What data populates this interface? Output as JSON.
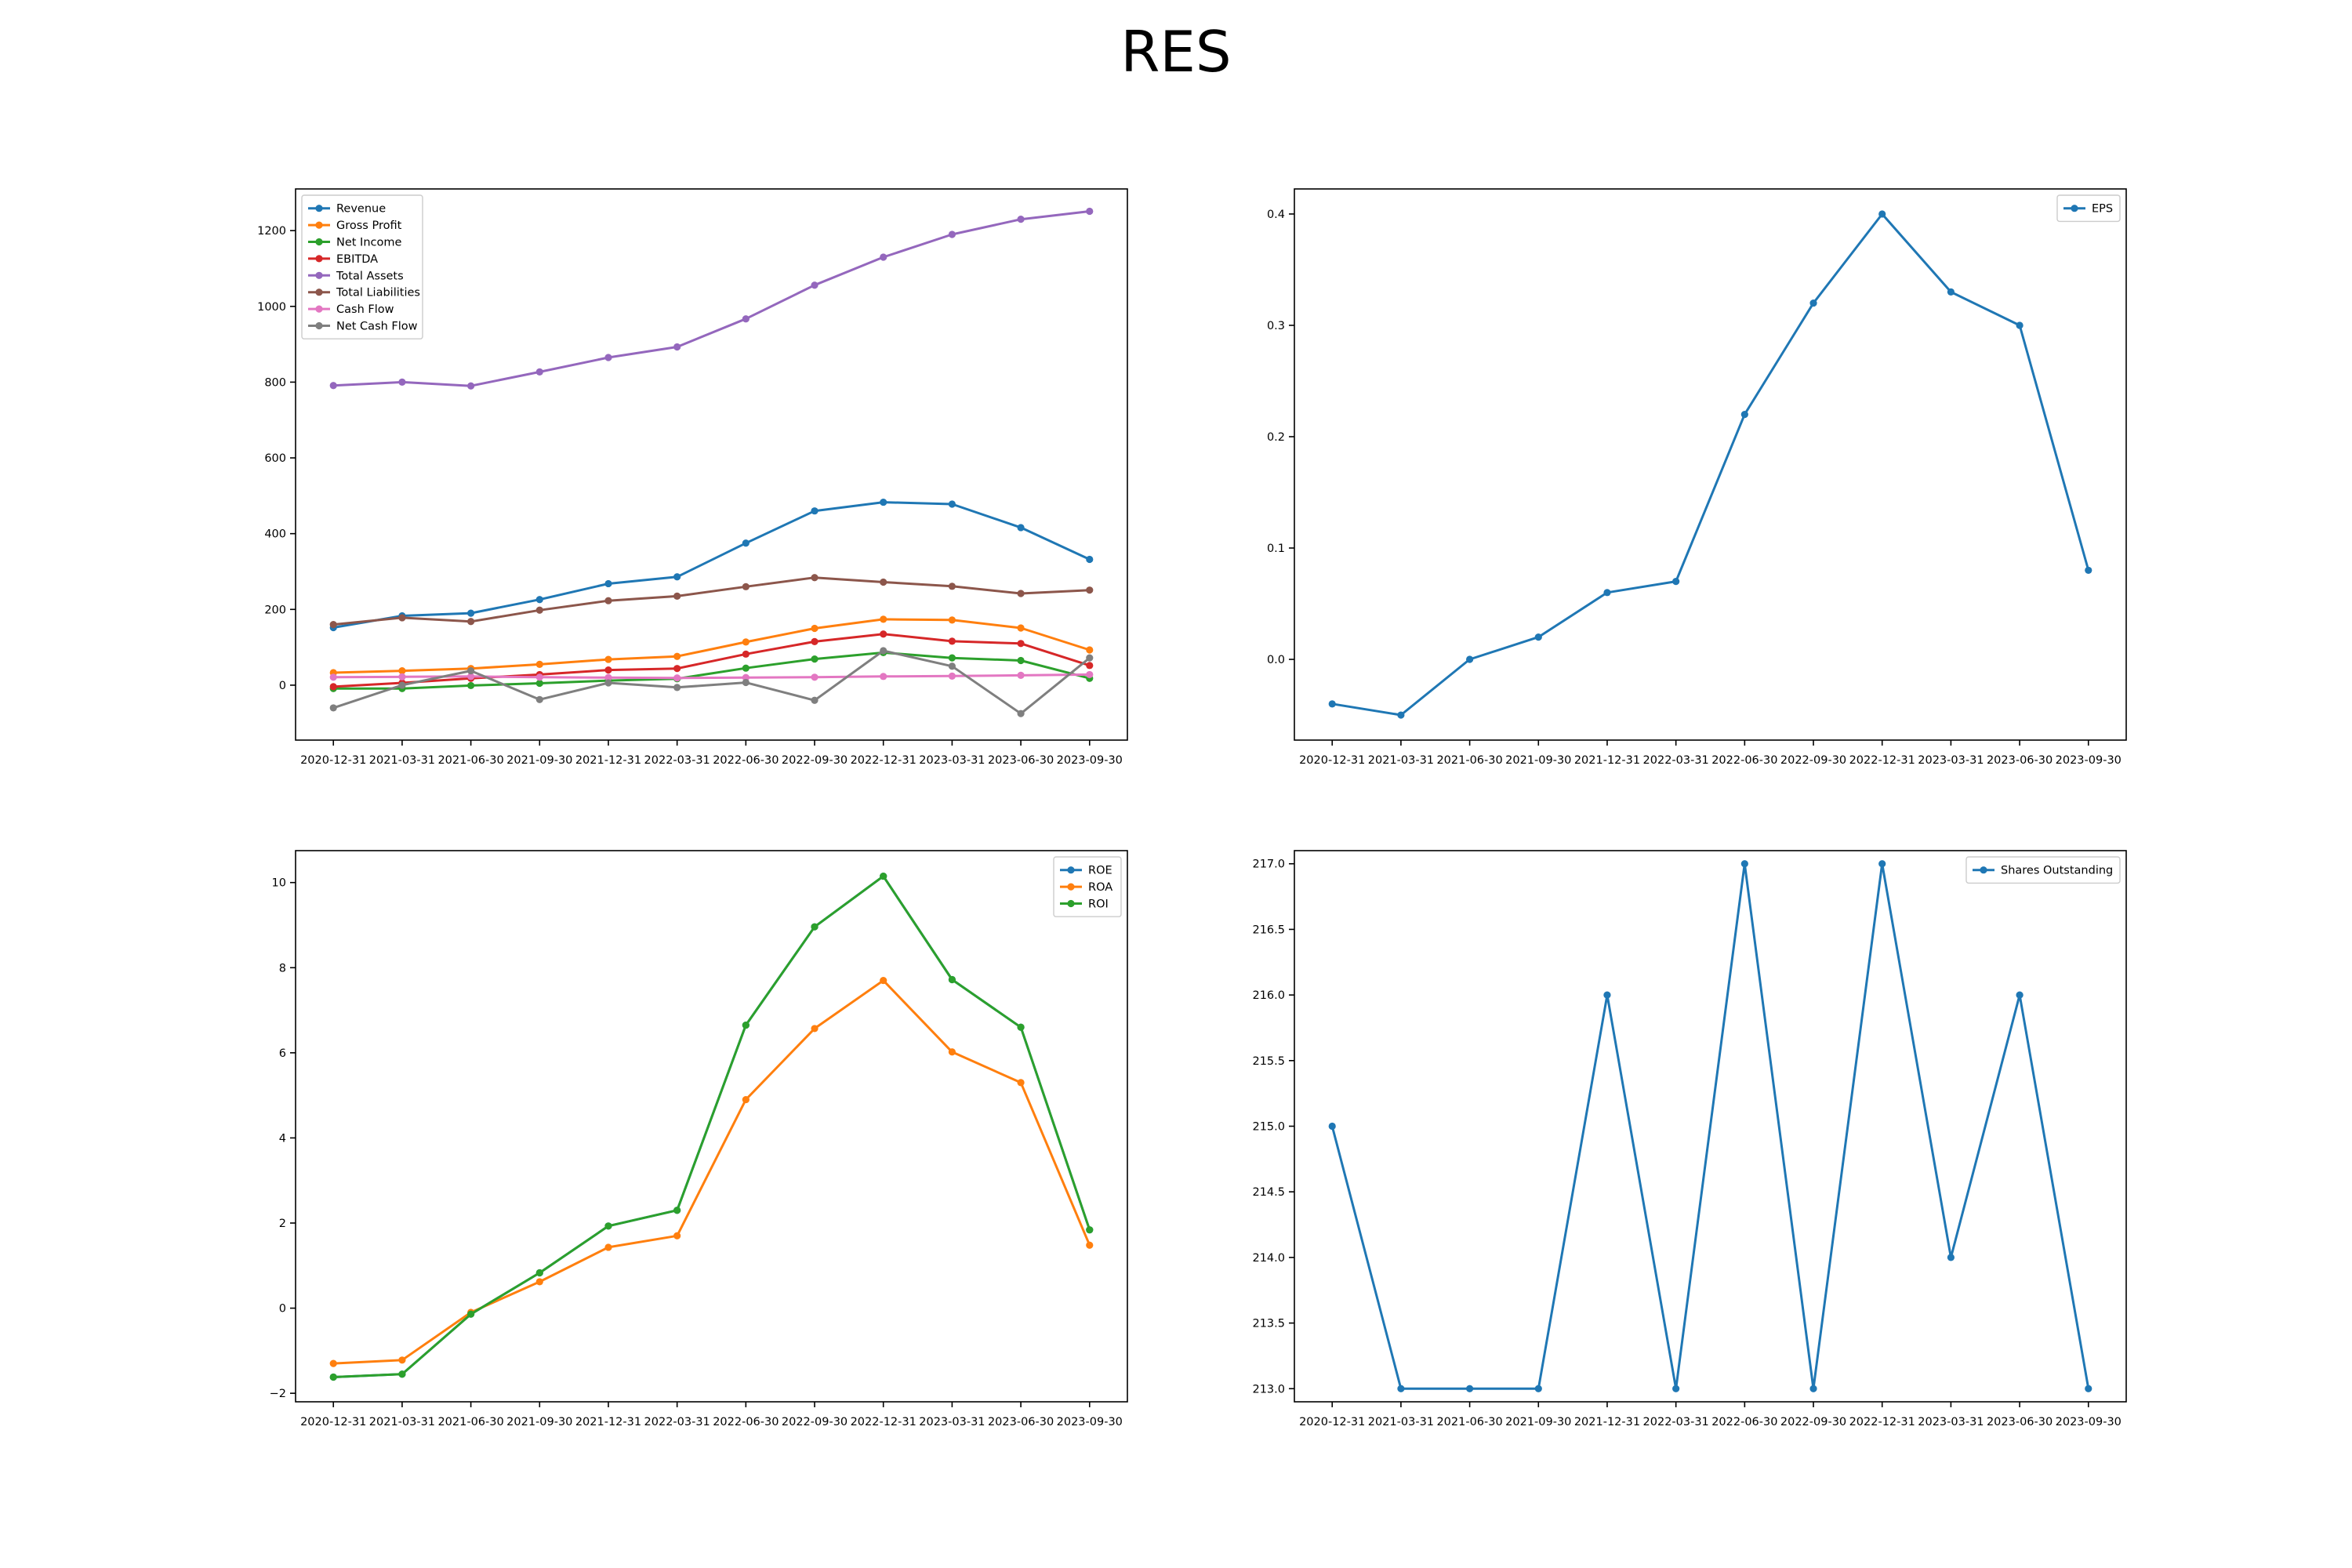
{
  "title": "RES",
  "chart_data": [
    {
      "type": "line",
      "x": [
        "2020-12-31",
        "2021-03-31",
        "2021-06-30",
        "2021-09-30",
        "2021-12-31",
        "2022-03-31",
        "2022-06-30",
        "2022-09-30",
        "2022-12-31",
        "2023-03-31",
        "2023-06-30",
        "2023-09-30"
      ],
      "ylim": [
        -145,
        1310
      ],
      "yticks": [
        0,
        200,
        400,
        600,
        800,
        1000,
        1200
      ],
      "legend": "upper left",
      "series": [
        {
          "name": "Revenue",
          "color": "#1f77b4",
          "values": [
            152,
            183,
            190,
            226,
            268,
            286,
            375,
            460,
            483,
            478,
            416,
            332
          ]
        },
        {
          "name": "Gross Profit",
          "color": "#ff7f0e",
          "values": [
            33,
            38,
            44,
            55,
            68,
            76,
            114,
            150,
            174,
            172,
            151,
            93
          ]
        },
        {
          "name": "Net Income",
          "color": "#2ca02c",
          "values": [
            -9,
            -9,
            -1,
            5,
            12,
            17,
            45,
            69,
            86,
            72,
            65,
            18
          ]
        },
        {
          "name": "EBITDA",
          "color": "#d62728",
          "values": [
            -4,
            6,
            18,
            28,
            40,
            44,
            82,
            115,
            135,
            116,
            110,
            52
          ]
        },
        {
          "name": "Total Assets",
          "color": "#9467bd",
          "values": [
            791,
            800,
            790,
            827,
            865,
            893,
            967,
            1056,
            1130,
            1190,
            1230,
            1251
          ]
        },
        {
          "name": "Total Liabilities",
          "color": "#8c564b",
          "values": [
            160,
            178,
            168,
            198,
            223,
            235,
            260,
            284,
            272,
            261,
            242,
            251
          ]
        },
        {
          "name": "Cash Flow",
          "color": "#e377c2",
          "values": [
            21,
            22,
            23,
            21,
            20,
            19,
            20,
            21,
            23,
            24,
            26,
            28
          ]
        },
        {
          "name": "Net Cash Flow",
          "color": "#7f7f7f",
          "values": [
            -60,
            0,
            38,
            -38,
            6,
            -6,
            7,
            -40,
            91,
            50,
            -75,
            72
          ]
        }
      ]
    },
    {
      "type": "line",
      "x": [
        "2020-12-31",
        "2021-03-31",
        "2021-06-30",
        "2021-09-30",
        "2021-12-31",
        "2022-03-31",
        "2022-06-30",
        "2022-09-30",
        "2022-12-31",
        "2023-03-31",
        "2023-06-30",
        "2023-09-30"
      ],
      "ylim": [
        -0.0725,
        0.4225
      ],
      "yticks": [
        0.0,
        0.1,
        0.2,
        0.3,
        0.4
      ],
      "ytick_labels": [
        "0.0",
        "0.1",
        "0.2",
        "0.3",
        "0.4"
      ],
      "legend": "upper right",
      "series": [
        {
          "name": "EPS",
          "color": "#1f77b4",
          "values": [
            -0.04,
            -0.05,
            0.0,
            0.02,
            0.06,
            0.07,
            0.22,
            0.32,
            0.4,
            0.33,
            0.3,
            0.08
          ]
        }
      ]
    },
    {
      "type": "line",
      "x": [
        "2020-12-31",
        "2021-03-31",
        "2021-06-30",
        "2021-09-30",
        "2021-12-31",
        "2022-03-31",
        "2022-06-30",
        "2022-09-30",
        "2022-12-31",
        "2023-03-31",
        "2023-06-30",
        "2023-09-30"
      ],
      "ylim": [
        -2.2,
        10.75
      ],
      "yticks": [
        -2,
        0,
        2,
        4,
        6,
        8,
        10
      ],
      "ytick_labels": [
        "−2",
        "0",
        "2",
        "4",
        "6",
        "8",
        "10"
      ],
      "legend": "upper right",
      "series": [
        {
          "name": "ROE",
          "color": "#1f77b4",
          "values": [
            -1.62,
            -1.55,
            -0.14,
            0.83,
            1.93,
            2.3,
            6.65,
            8.96,
            10.15,
            7.72,
            6.6,
            1.84
          ]
        },
        {
          "name": "ROA",
          "color": "#ff7f0e",
          "values": [
            -1.3,
            -1.22,
            -0.1,
            0.62,
            1.43,
            1.7,
            4.9,
            6.57,
            7.7,
            6.02,
            5.3,
            1.48
          ]
        },
        {
          "name": "ROI",
          "color": "#2ca02c",
          "values": [
            -1.62,
            -1.55,
            -0.14,
            0.83,
            1.93,
            2.3,
            6.65,
            8.96,
            10.15,
            7.72,
            6.6,
            1.84
          ]
        }
      ]
    },
    {
      "type": "line",
      "x": [
        "2020-12-31",
        "2021-03-31",
        "2021-06-30",
        "2021-09-30",
        "2021-12-31",
        "2022-03-31",
        "2022-06-30",
        "2022-09-30",
        "2022-12-31",
        "2023-03-31",
        "2023-06-30",
        "2023-09-30"
      ],
      "ylim": [
        212.9,
        217.1
      ],
      "yticks": [
        213.0,
        213.5,
        214.0,
        214.5,
        215.0,
        215.5,
        216.0,
        216.5,
        217.0
      ],
      "ytick_labels": [
        "213.0",
        "213.5",
        "214.0",
        "214.5",
        "215.0",
        "215.5",
        "216.0",
        "216.5",
        "217.0"
      ],
      "legend": "upper right",
      "series": [
        {
          "name": "Shares Outstanding",
          "color": "#1f77b4",
          "values": [
            215,
            213,
            213,
            213,
            216,
            213,
            217,
            213,
            217,
            214,
            216,
            213
          ]
        }
      ]
    }
  ]
}
